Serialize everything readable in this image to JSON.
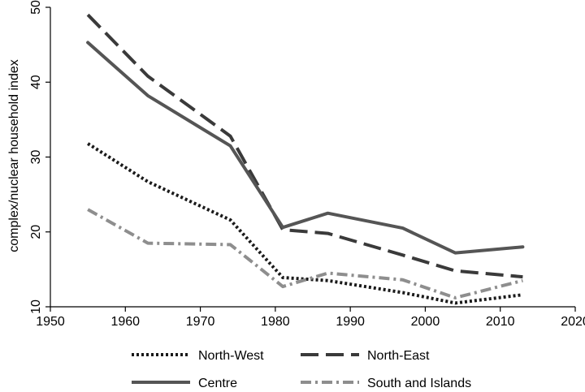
{
  "chart_data": {
    "type": "line",
    "title": "",
    "xlabel": "",
    "ylabel": "complex/nuclear household index",
    "xlim": [
      1950,
      2020
    ],
    "ylim": [
      10,
      50
    ],
    "xticks": [
      1950,
      1960,
      1970,
      1980,
      1990,
      2000,
      2010,
      2020
    ],
    "yticks": [
      10,
      20,
      30,
      40,
      50
    ],
    "grid": false,
    "legend_position": "bottom",
    "series": [
      {
        "name": "North-West",
        "style": "dotted",
        "color": "#1a1a1a",
        "x": [
          1955,
          1963,
          1974,
          1981,
          1987,
          1997,
          2004,
          2013
        ],
        "y": [
          31.8,
          26.7,
          21.6,
          13.9,
          13.5,
          11.9,
          10.5,
          11.6
        ]
      },
      {
        "name": "North-East",
        "style": "dashed",
        "color": "#3a3a3a",
        "x": [
          1955,
          1963,
          1974,
          1981,
          1987,
          1997,
          2004,
          2013
        ],
        "y": [
          49.0,
          40.8,
          32.8,
          20.3,
          19.8,
          16.9,
          14.8,
          14.0
        ]
      },
      {
        "name": "Centre",
        "style": "solid",
        "color": "#555555",
        "x": [
          1955,
          1963,
          1974,
          1981,
          1987,
          1997,
          2004,
          2013
        ],
        "y": [
          45.3,
          38.2,
          31.5,
          20.6,
          22.5,
          20.5,
          17.2,
          18.0
        ]
      },
      {
        "name": "South and Islands",
        "style": "dashdot",
        "color": "#8e8e8e",
        "x": [
          1955,
          1963,
          1974,
          1981,
          1987,
          1997,
          2004,
          2013
        ],
        "y": [
          23.0,
          18.5,
          18.3,
          12.7,
          14.5,
          13.6,
          11.2,
          13.5
        ]
      }
    ]
  }
}
